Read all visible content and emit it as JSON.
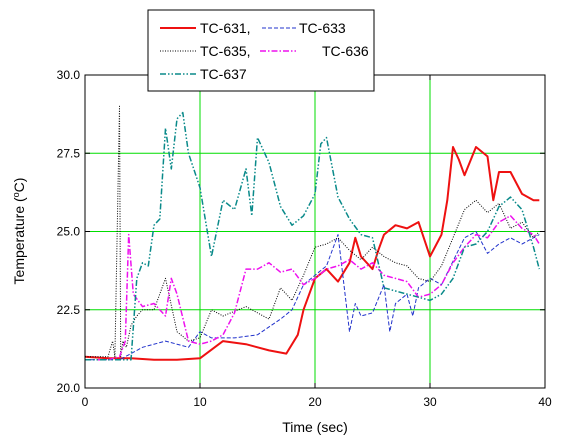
{
  "chart_data": {
    "type": "line",
    "xlabel": "Time (sec)",
    "ylabel_prefix": "Temperature (",
    "ylabel_sup": "o",
    "ylabel_suffix": "C)",
    "xlim": [
      0,
      40
    ],
    "ylim": [
      20.0,
      30.0
    ],
    "x_ticks": [
      0,
      10,
      20,
      30,
      40
    ],
    "y_ticks": [
      20.0,
      22.5,
      25.0,
      27.5,
      30.0
    ],
    "x_tick_labels": [
      "0",
      "10",
      "20",
      "30",
      "40"
    ],
    "y_tick_labels": [
      "20.0",
      "22.5",
      "25.0",
      "27.5",
      "30.0"
    ],
    "grid": true,
    "grid_color": "#00dd00",
    "legend_position": "top-center",
    "legend_labels": [
      "TC-631,",
      "TC-633",
      "TC-635,",
      "TC-636",
      "TC-637"
    ],
    "series": [
      {
        "name": "TC-631",
        "color": "#ee1111",
        "dash": "solid",
        "x": [
          0,
          2,
          4,
          6,
          8,
          10,
          12,
          14,
          16,
          17.5,
          18.5,
          19,
          20,
          21,
          22,
          23,
          23.5,
          24,
          25,
          25.5,
          26,
          27,
          28,
          29,
          30,
          31,
          31.5,
          32,
          32.5,
          33,
          34,
          35,
          35.5,
          36,
          37,
          38,
          39,
          39.5
        ],
        "y": [
          21.0,
          20.95,
          20.95,
          20.9,
          20.9,
          20.95,
          21.5,
          21.4,
          21.2,
          21.1,
          21.7,
          22.5,
          23.5,
          23.8,
          23.4,
          24.0,
          24.8,
          24.2,
          23.8,
          24.4,
          24.9,
          25.2,
          25.1,
          25.3,
          24.2,
          24.9,
          26.0,
          27.7,
          27.3,
          26.8,
          27.7,
          27.4,
          26.0,
          26.9,
          26.9,
          26.2,
          26.0,
          26.0
        ]
      },
      {
        "name": "TC-633",
        "color": "#2233cc",
        "dash": "dash",
        "x": [
          0,
          2,
          3,
          4,
          5,
          7,
          9,
          10,
          11,
          13,
          15,
          17,
          18,
          19,
          20,
          21,
          22,
          23,
          23.5,
          24,
          25,
          26,
          26.5,
          27,
          28,
          28.5,
          29,
          30,
          31,
          33,
          34,
          35,
          36,
          37,
          38,
          39,
          39.5
        ],
        "y": [
          20.9,
          20.9,
          20.9,
          21.1,
          21.3,
          21.5,
          21.3,
          21.8,
          21.6,
          21.6,
          21.7,
          22.2,
          22.5,
          23.3,
          23.6,
          23.9,
          24.9,
          21.8,
          22.7,
          22.3,
          22.4,
          23.3,
          21.8,
          22.7,
          23.0,
          22.3,
          23.2,
          23.5,
          23.3,
          24.8,
          25.0,
          24.3,
          24.6,
          24.8,
          24.6,
          24.8,
          24.9
        ]
      },
      {
        "name": "TC-635",
        "color": "#000000",
        "dash": "dot",
        "x": [
          0,
          1,
          2,
          2.4,
          2.6,
          3.0,
          3.1,
          3.3,
          3.6,
          4,
          4.5,
          5,
          6,
          7,
          8,
          9,
          10,
          11,
          12,
          14,
          16,
          17,
          18,
          19,
          20,
          21,
          22,
          23,
          24,
          25,
          26,
          27,
          28,
          29,
          30,
          31,
          32,
          33,
          34,
          35,
          36,
          37,
          38,
          39,
          39.5
        ],
        "y": [
          21.0,
          21.0,
          21.0,
          21.5,
          21.0,
          29.0,
          21.0,
          21.5,
          21.3,
          22.0,
          22.3,
          22.5,
          22.5,
          23.5,
          21.8,
          21.5,
          21.6,
          22.5,
          22.3,
          22.6,
          22.2,
          23.2,
          22.8,
          23.6,
          24.5,
          24.6,
          24.8,
          24.4,
          24.1,
          24.5,
          24.2,
          24.0,
          23.9,
          23.5,
          23.4,
          23.9,
          24.8,
          25.7,
          26.0,
          25.6,
          25.9,
          25.1,
          25.3,
          24.8,
          25.0
        ]
      },
      {
        "name": "TC-636",
        "color": "#ee11ee",
        "dash": "dashdot",
        "x": [
          0,
          2,
          3,
          3.5,
          3.8,
          4.2,
          5,
          6,
          7,
          7.5,
          8,
          9,
          10,
          11,
          12,
          13,
          14,
          15,
          16,
          17,
          18,
          19,
          20,
          21,
          22,
          23,
          24,
          25,
          26,
          27,
          28,
          29,
          30,
          31,
          32,
          33,
          34,
          35,
          36,
          37,
          38,
          39,
          39.5
        ],
        "y": [
          20.9,
          20.9,
          21.0,
          21.5,
          24.9,
          23.0,
          22.6,
          22.7,
          22.3,
          23.5,
          23.0,
          21.5,
          21.4,
          21.5,
          21.7,
          22.4,
          23.8,
          23.8,
          24.0,
          23.7,
          23.8,
          23.3,
          23.5,
          23.8,
          23.9,
          24.1,
          23.8,
          24.0,
          23.6,
          23.5,
          23.4,
          22.9,
          23.0,
          23.3,
          24.0,
          24.5,
          24.9,
          24.8,
          25.3,
          25.5,
          25.1,
          24.9,
          24.6
        ]
      },
      {
        "name": "TC-637",
        "color": "#0a8a8a",
        "dash": "dashdotdot",
        "x": [
          0,
          2,
          3,
          4,
          4.5,
          5,
          5.5,
          6,
          6.5,
          7,
          7.5,
          8,
          8.5,
          9,
          10,
          11,
          12,
          13,
          14,
          14.5,
          15,
          16,
          17,
          18,
          19,
          20,
          20.5,
          21,
          22,
          23,
          24,
          25,
          26,
          27,
          28,
          29,
          30,
          31,
          32,
          33,
          34,
          35,
          36,
          37,
          38,
          39,
          39.5
        ],
        "y": [
          20.9,
          20.9,
          20.9,
          20.9,
          23.5,
          24.0,
          23.9,
          25.2,
          25.4,
          28.3,
          27.0,
          28.6,
          28.8,
          27.5,
          26.4,
          24.2,
          26.0,
          25.7,
          27.0,
          25.5,
          28.0,
          27.2,
          25.8,
          25.2,
          25.5,
          26.2,
          27.8,
          28.0,
          26.1,
          25.4,
          24.9,
          24.8,
          23.2,
          23.1,
          23.0,
          22.9,
          22.8,
          23.0,
          23.5,
          24.5,
          24.6,
          25.0,
          25.8,
          26.1,
          25.7,
          24.5,
          23.8
        ]
      }
    ]
  }
}
